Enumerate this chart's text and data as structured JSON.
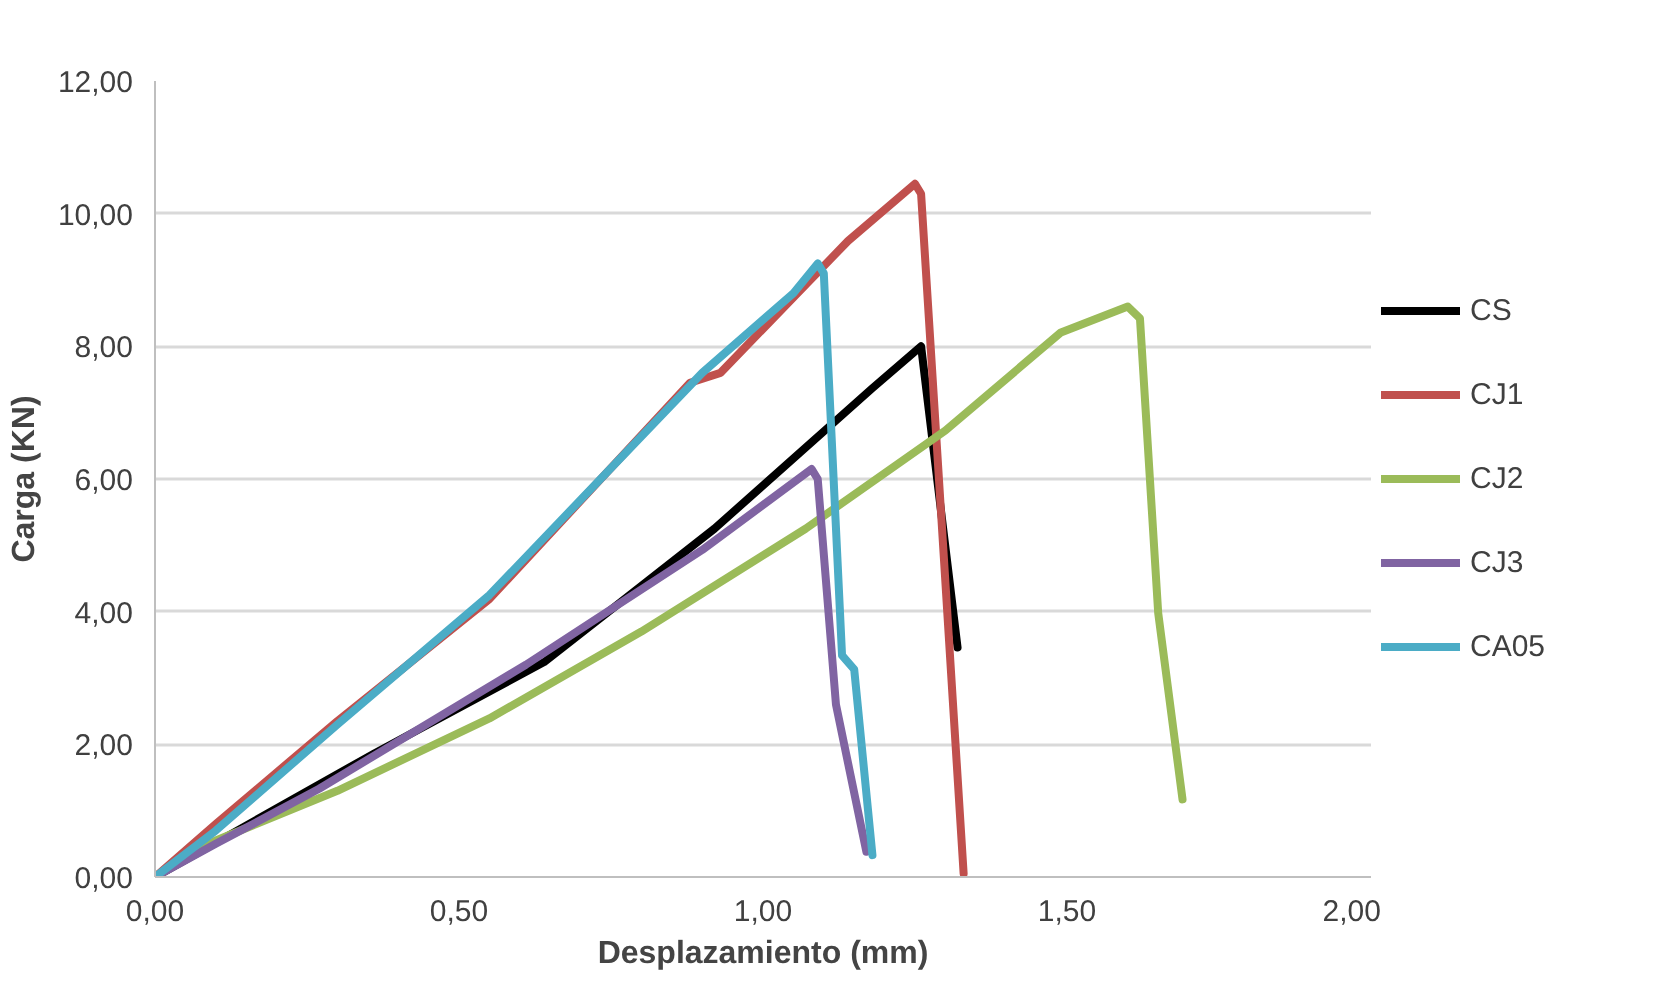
{
  "chart_data": {
    "type": "line",
    "xlabel": "Desplazamiento (mm)",
    "ylabel": "Carga (KN)",
    "xlim": [
      0,
      2
    ],
    "ylim": [
      0,
      12
    ],
    "xticks": [
      {
        "value": 0,
        "label": "0,00"
      },
      {
        "value": 0.5,
        "label": "0,50"
      },
      {
        "value": 1,
        "label": "1,00"
      },
      {
        "value": 1.5,
        "label": "1,50"
      },
      {
        "value": 2,
        "label": "2,00"
      }
    ],
    "yticks": [
      {
        "value": 0,
        "label": "0,00"
      },
      {
        "value": 2,
        "label": "2,00"
      },
      {
        "value": 4,
        "label": "4,00"
      },
      {
        "value": 6,
        "label": "6,00"
      },
      {
        "value": 8,
        "label": "8,00"
      },
      {
        "value": 10,
        "label": "10,00"
      },
      {
        "value": 12,
        "label": "12,00"
      }
    ],
    "grid": "y",
    "legend": "right",
    "marker": "none",
    "line_style": "solid",
    "series": [
      {
        "name": "CS",
        "color": "#000000",
        "x": [
          0,
          0.36,
          0.64,
          0.92,
          1.18,
          1.26,
          1.32
        ],
        "values": [
          0,
          1.86,
          3.24,
          5.25,
          7.37,
          8.0,
          3.46
        ]
      },
      {
        "name": "CJ1",
        "color": "#c0504d",
        "x": [
          0,
          0.1,
          0.3,
          0.55,
          0.88,
          0.93,
          1.14,
          1.25,
          1.26,
          1.33
        ],
        "values": [
          0,
          0.8,
          2.35,
          4.19,
          7.45,
          7.6,
          9.59,
          10.45,
          10.3,
          0.05
        ]
      },
      {
        "name": "CJ2",
        "color": "#9bbb59",
        "x": [
          0,
          0.1,
          0.3,
          0.55,
          0.8,
          1.07,
          1.3,
          1.49,
          1.6,
          1.62,
          1.65,
          1.69
        ],
        "values": [
          0,
          0.55,
          1.3,
          2.39,
          3.7,
          5.25,
          6.73,
          8.21,
          8.6,
          8.42,
          3.98,
          1.17
        ]
      },
      {
        "name": "CJ3",
        "color": "#8064a2",
        "x": [
          0,
          0.1,
          0.27,
          0.61,
          0.9,
          1.08,
          1.09,
          1.12,
          1.17
        ],
        "values": [
          0,
          0.5,
          1.33,
          3.2,
          4.93,
          6.15,
          6.0,
          2.6,
          0.38
        ]
      },
      {
        "name": "CA05",
        "color": "#4bacc6",
        "x": [
          0,
          0.1,
          0.3,
          0.55,
          0.9,
          1.05,
          1.09,
          1.1,
          1.13,
          1.15,
          1.18
        ],
        "values": [
          0,
          0.7,
          2.3,
          4.25,
          7.6,
          8.8,
          9.25,
          9.1,
          3.34,
          3.13,
          0.33
        ]
      }
    ]
  }
}
